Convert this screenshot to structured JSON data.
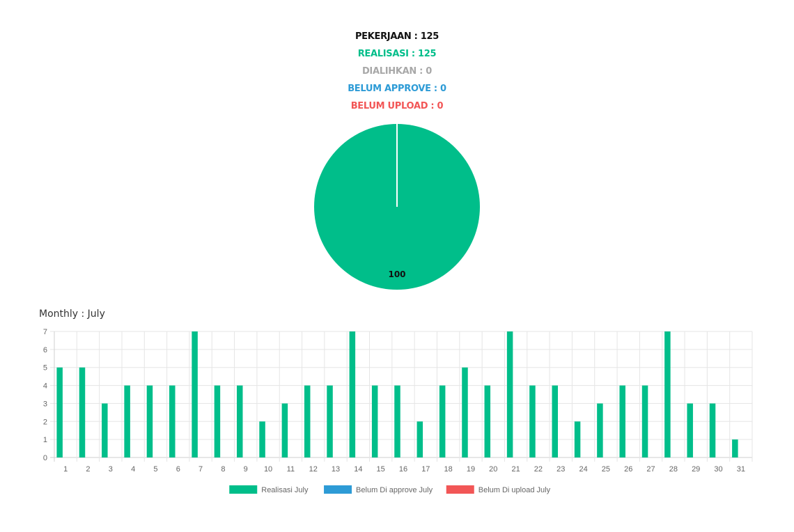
{
  "summary": {
    "pekerjaan": "PEKERJAAN : 125",
    "realisasi": "REALISASI : 125",
    "dialihkan": "DIALIHKAN : 0",
    "belum_approve": "BELUM APPROVE : 0",
    "belum_upload": "BELUM UPLOAD : 0"
  },
  "colors": {
    "realisasi": "#00be8a",
    "dialihkan": "#a8a8a8",
    "belum_approve": "#2d9bd6",
    "belum_upload": "#f25656",
    "grid": "#e5e5e5"
  },
  "monthly_title": "Monthly : July",
  "chart_data": [
    {
      "type": "pie",
      "slices": [
        {
          "label": "Realisasi",
          "value": 100,
          "color": "#00be8a"
        }
      ],
      "data_labels": [
        "100"
      ]
    },
    {
      "type": "bar",
      "categories": [
        "1",
        "2",
        "3",
        "4",
        "5",
        "6",
        "7",
        "8",
        "9",
        "10",
        "11",
        "12",
        "13",
        "14",
        "15",
        "16",
        "17",
        "18",
        "19",
        "20",
        "21",
        "22",
        "23",
        "24",
        "25",
        "26",
        "27",
        "28",
        "29",
        "30",
        "31"
      ],
      "series": [
        {
          "name": "Realisasi July",
          "color": "#00be8a",
          "values": [
            5,
            5,
            3,
            4,
            4,
            4,
            7,
            4,
            4,
            2,
            3,
            4,
            4,
            7,
            4,
            4,
            2,
            4,
            5,
            4,
            7,
            4,
            4,
            2,
            3,
            4,
            4,
            7,
            3,
            3,
            1
          ]
        },
        {
          "name": "Belum Di approve July",
          "color": "#2d9bd6",
          "values": [
            0,
            0,
            0,
            0,
            0,
            0,
            0,
            0,
            0,
            0,
            0,
            0,
            0,
            0,
            0,
            0,
            0,
            0,
            0,
            0,
            0,
            0,
            0,
            0,
            0,
            0,
            0,
            0,
            0,
            0,
            0
          ]
        },
        {
          "name": "Belum Di upload July",
          "color": "#f25656",
          "values": [
            0,
            0,
            0,
            0,
            0,
            0,
            0,
            0,
            0,
            0,
            0,
            0,
            0,
            0,
            0,
            0,
            0,
            0,
            0,
            0,
            0,
            0,
            0,
            0,
            0,
            0,
            0,
            0,
            0,
            0,
            0
          ]
        }
      ],
      "ylim": [
        0,
        7
      ],
      "yticks": [
        0,
        1,
        2,
        3,
        4,
        5,
        6,
        7
      ],
      "grid": true,
      "legend": "bottom-center"
    }
  ]
}
